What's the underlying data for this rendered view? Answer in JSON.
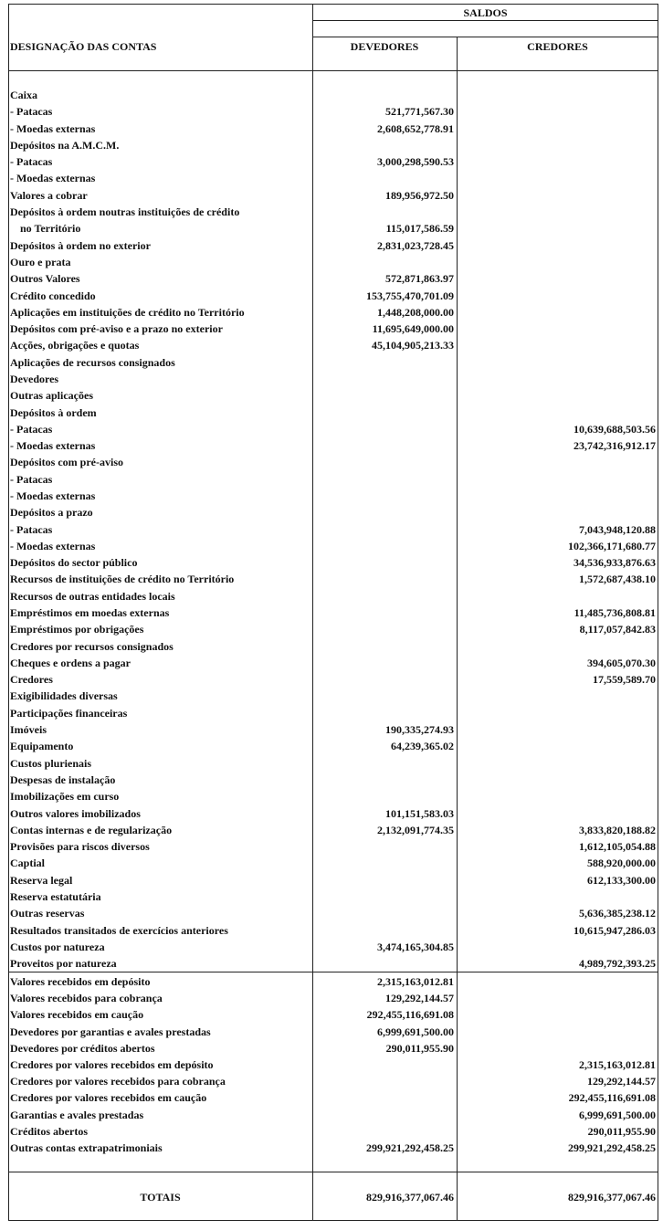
{
  "header": {
    "saldos": "SALDOS",
    "designacao": "DESIGNAÇÃO DAS CONTAS",
    "devedores": "DEVEDORES",
    "credores": "CREDORES"
  },
  "rows": [
    {
      "label": "Caixa",
      "devedores": "",
      "credores": ""
    },
    {
      "label": "- Patacas",
      "devedores": "521,771,567.30",
      "credores": ""
    },
    {
      "label": "- Moedas externas",
      "devedores": "2,608,652,778.91",
      "credores": ""
    },
    {
      "label": "Depósitos na A.M.C.M.",
      "devedores": "",
      "credores": ""
    },
    {
      "label": "- Patacas",
      "devedores": "3,000,298,590.53",
      "credores": ""
    },
    {
      "label": "- Moedas externas",
      "devedores": "",
      "credores": ""
    },
    {
      "label": "Valores a cobrar",
      "devedores": "189,956,972.50",
      "credores": ""
    },
    {
      "label": "Depósitos à ordem noutras instituições de crédito",
      "devedores": "",
      "credores": ""
    },
    {
      "label": "no Território",
      "devedores": "115,017,586.59",
      "credores": "",
      "indent": true
    },
    {
      "label": "Depósitos à ordem no exterior",
      "devedores": "2,831,023,728.45",
      "credores": ""
    },
    {
      "label": "Ouro e prata",
      "devedores": "",
      "credores": ""
    },
    {
      "label": "Outros Valores",
      "devedores": "572,871,863.97",
      "credores": ""
    },
    {
      "label": "Crédito concedido",
      "devedores": "153,755,470,701.09",
      "credores": ""
    },
    {
      "label": "Aplicações em instituições de crédito no Território",
      "devedores": "1,448,208,000.00",
      "credores": ""
    },
    {
      "label": "Depósitos com pré-aviso e a prazo no exterior",
      "devedores": "11,695,649,000.00",
      "credores": ""
    },
    {
      "label": "Acções, obrigações e quotas",
      "devedores": "45,104,905,213.33",
      "credores": ""
    },
    {
      "label": "Aplicações de recursos consignados",
      "devedores": "",
      "credores": ""
    },
    {
      "label": "Devedores",
      "devedores": "",
      "credores": ""
    },
    {
      "label": "Outras aplicações",
      "devedores": "",
      "credores": ""
    },
    {
      "label": "Depósitos à ordem",
      "devedores": "",
      "credores": ""
    },
    {
      "label": "- Patacas",
      "devedores": "",
      "credores": "10,639,688,503.56"
    },
    {
      "label": "- Moedas externas",
      "devedores": "",
      "credores": "23,742,316,912.17"
    },
    {
      "label": "Depósitos com pré-aviso",
      "devedores": "",
      "credores": ""
    },
    {
      "label": "- Patacas",
      "devedores": "",
      "credores": ""
    },
    {
      "label": "- Moedas externas",
      "devedores": "",
      "credores": ""
    },
    {
      "label": "Depósitos a prazo",
      "devedores": "",
      "credores": ""
    },
    {
      "label": "- Patacas",
      "devedores": "",
      "credores": "7,043,948,120.88"
    },
    {
      "label": "- Moedas externas",
      "devedores": "",
      "credores": "102,366,171,680.77"
    },
    {
      "label": "Depósitos do sector público",
      "devedores": "",
      "credores": "34,536,933,876.63"
    },
    {
      "label": "Recursos de instituições de crédito no Território",
      "devedores": "",
      "credores": "1,572,687,438.10"
    },
    {
      "label": "Recursos de outras entidades locais",
      "devedores": "",
      "credores": ""
    },
    {
      "label": "Empréstimos em moedas externas",
      "devedores": "",
      "credores": "11,485,736,808.81"
    },
    {
      "label": "Empréstimos por obrigações",
      "devedores": "",
      "credores": "8,117,057,842.83"
    },
    {
      "label": "Credores por recursos consignados",
      "devedores": "",
      "credores": ""
    },
    {
      "label": "Cheques e ordens a pagar",
      "devedores": "",
      "credores": "394,605,070.30"
    },
    {
      "label": "Credores",
      "devedores": "",
      "credores": "17,559,589.70"
    },
    {
      "label": "Exigibilidades diversas",
      "devedores": "",
      "credores": ""
    },
    {
      "label": "Participações financeiras",
      "devedores": "",
      "credores": ""
    },
    {
      "label": "Imóveis",
      "devedores": "190,335,274.93",
      "credores": ""
    },
    {
      "label": "Equipamento",
      "devedores": "64,239,365.02",
      "credores": ""
    },
    {
      "label": "Custos plurienais",
      "devedores": "",
      "credores": ""
    },
    {
      "label": "Despesas de instalação",
      "devedores": "",
      "credores": ""
    },
    {
      "label": "Imobilizações em  curso",
      "devedores": "",
      "credores": ""
    },
    {
      "label": "Outros valores imobilizados",
      "devedores": "101,151,583.03",
      "credores": ""
    },
    {
      "label": "Contas internas e de regularização",
      "devedores": "2,132,091,774.35",
      "credores": "3,833,820,188.82"
    },
    {
      "label": "Provisões para riscos diversos",
      "devedores": "",
      "credores": "1,612,105,054.88"
    },
    {
      "label": "Captial",
      "devedores": "",
      "credores": "588,920,000.00"
    },
    {
      "label": "Reserva legal",
      "devedores": "",
      "credores": "612,133,300.00"
    },
    {
      "label": "Reserva estatutária",
      "devedores": "",
      "credores": ""
    },
    {
      "label": "Outras reservas",
      "devedores": "",
      "credores": "5,636,385,238.12"
    },
    {
      "label": "Resultados transitados de exercícios anteriores",
      "devedores": "",
      "credores": "10,615,947,286.03"
    },
    {
      "label": "Custos por natureza",
      "devedores": "3,474,165,304.85",
      "credores": ""
    },
    {
      "label": "Proveitos por natureza",
      "devedores": "",
      "credores": "4,989,792,393.25"
    }
  ],
  "off_balance_rows": [
    {
      "label": "Valores recebidos em depósito",
      "devedores": "2,315,163,012.81",
      "credores": ""
    },
    {
      "label": "Valores recebidos para cobrança",
      "devedores": "129,292,144.57",
      "credores": ""
    },
    {
      "label": "Valores recebidos em caução",
      "devedores": "292,455,116,691.08",
      "credores": ""
    },
    {
      "label": "Devedores por garantias e avales prestadas",
      "devedores": "6,999,691,500.00",
      "credores": ""
    },
    {
      "label": "Devedores por créditos abertos",
      "devedores": "290,011,955.90",
      "credores": ""
    },
    {
      "label": "Credores por valores recebidos em depósito",
      "devedores": "",
      "credores": "2,315,163,012.81"
    },
    {
      "label": "Credores por valores recebidos para cobrança",
      "devedores": "",
      "credores": "129,292,144.57"
    },
    {
      "label": "Credores por valores recebidos em caução",
      "devedores": "",
      "credores": "292,455,116,691.08"
    },
    {
      "label": "Garantias e avales prestadas",
      "devedores": "",
      "credores": "6,999,691,500.00"
    },
    {
      "label": "Créditos abertos",
      "devedores": "",
      "credores": "290,011,955.90"
    },
    {
      "label": "Outras contas extrapatrimoniais",
      "devedores": "299,921,292,458.25",
      "credores": "299,921,292,458.25"
    }
  ],
  "totals": {
    "label": "TOTAIS",
    "devedores": "829,916,377,067.46",
    "credores": "829,916,377,067.46"
  }
}
